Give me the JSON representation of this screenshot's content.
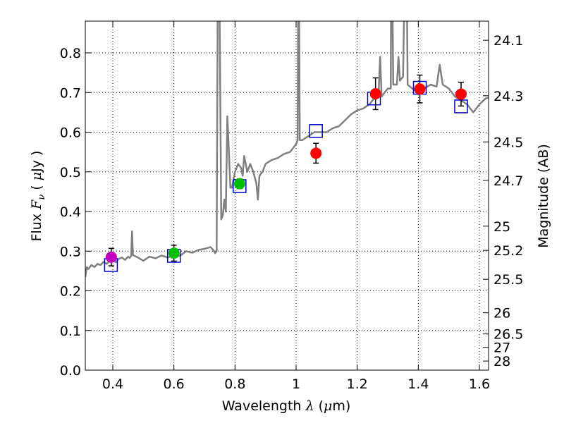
{
  "chart_data": {
    "type": "scatter",
    "xlabel_parts": [
      "Wavelength  ",
      "λ",
      " (",
      "μ",
      "m)"
    ],
    "ylabel_parts": [
      "Flux  ",
      "F",
      "ν",
      "  ( ",
      "μ",
      "Jy )"
    ],
    "y2label": "Magnitude (AB)",
    "xlim": [
      0.31,
      1.63
    ],
    "ylim": [
      0.0,
      0.88
    ],
    "grid": true,
    "x_ticks": [
      0.4,
      0.6,
      0.8,
      1.0,
      1.2,
      1.4,
      1.6
    ],
    "x_tick_labels": [
      "0.4",
      "0.6",
      "0.8",
      "1",
      "1.2",
      "1.4",
      "1.6"
    ],
    "y_ticks": [
      0.0,
      0.1,
      0.2,
      0.3,
      0.4,
      0.5,
      0.6,
      0.7,
      0.8
    ],
    "y_tick_labels": [
      "0.0",
      "0.1",
      "0.2",
      "0.3",
      "0.4",
      "0.5",
      "0.6",
      "0.7",
      "0.8"
    ],
    "y2_ticks": [
      24.1,
      24.3,
      24.5,
      24.7,
      25,
      25.2,
      25.5,
      26,
      26.5,
      27,
      28
    ],
    "y2_tick_labels": [
      "24.1",
      "24.3",
      "24.5",
      "24.7",
      "25",
      "25.2",
      "25.5",
      "26",
      "26.5",
      "27",
      "28"
    ],
    "colors": {
      "model": "#808080",
      "model_boxes": "#0000cc",
      "detection": "#ff0000",
      "purple": "#bf00bf",
      "green": "#00bf00",
      "errorbar": "#000000",
      "grid": "#000000"
    },
    "model_spectrum": [
      [
        0.31,
        0.235
      ],
      [
        0.315,
        0.26
      ],
      [
        0.32,
        0.255
      ],
      [
        0.33,
        0.265
      ],
      [
        0.34,
        0.26
      ],
      [
        0.35,
        0.268
      ],
      [
        0.36,
        0.265
      ],
      [
        0.37,
        0.273
      ],
      [
        0.38,
        0.268
      ],
      [
        0.39,
        0.276
      ],
      [
        0.4,
        0.278
      ],
      [
        0.41,
        0.272
      ],
      [
        0.42,
        0.281
      ],
      [
        0.43,
        0.284
      ],
      [
        0.44,
        0.278
      ],
      [
        0.45,
        0.286
      ],
      [
        0.455,
        0.283
      ],
      [
        0.46,
        0.288
      ],
      [
        0.463,
        0.35
      ],
      [
        0.466,
        0.29
      ],
      [
        0.48,
        0.285
      ],
      [
        0.5,
        0.276
      ],
      [
        0.52,
        0.286
      ],
      [
        0.54,
        0.282
      ],
      [
        0.56,
        0.289
      ],
      [
        0.58,
        0.284
      ],
      [
        0.6,
        0.29
      ],
      [
        0.62,
        0.288
      ],
      [
        0.64,
        0.3
      ],
      [
        0.66,
        0.296
      ],
      [
        0.68,
        0.303
      ],
      [
        0.7,
        0.306
      ],
      [
        0.72,
        0.31
      ],
      [
        0.73,
        0.302
      ],
      [
        0.735,
        0.295
      ],
      [
        0.74,
        0.3
      ],
      [
        0.745,
        1.2
      ],
      [
        0.75,
        0.86
      ],
      [
        0.755,
        0.38
      ],
      [
        0.76,
        0.39
      ],
      [
        0.765,
        0.43
      ],
      [
        0.77,
        0.4
      ],
      [
        0.775,
        0.64
      ],
      [
        0.78,
        0.55
      ],
      [
        0.785,
        0.46
      ],
      [
        0.79,
        0.46
      ],
      [
        0.8,
        0.5
      ],
      [
        0.81,
        0.52
      ],
      [
        0.82,
        0.51
      ],
      [
        0.825,
        0.49
      ],
      [
        0.83,
        0.54
      ],
      [
        0.84,
        0.5
      ],
      [
        0.85,
        0.52
      ],
      [
        0.86,
        0.5
      ],
      [
        0.87,
        0.47
      ],
      [
        0.875,
        0.43
      ],
      [
        0.88,
        0.49
      ],
      [
        0.89,
        0.5
      ],
      [
        0.9,
        0.52
      ],
      [
        0.92,
        0.53
      ],
      [
        0.94,
        0.535
      ],
      [
        0.96,
        0.545
      ],
      [
        0.98,
        0.55
      ],
      [
        0.99,
        0.56
      ],
      [
        1.0,
        0.57
      ],
      [
        1.005,
        0.58
      ],
      [
        1.008,
        1.2
      ],
      [
        1.012,
        0.58
      ],
      [
        1.02,
        0.58
      ],
      [
        1.04,
        0.59
      ],
      [
        1.06,
        0.6
      ],
      [
        1.08,
        0.6
      ],
      [
        1.1,
        0.6
      ],
      [
        1.12,
        0.61
      ],
      [
        1.14,
        0.615
      ],
      [
        1.16,
        0.63
      ],
      [
        1.18,
        0.645
      ],
      [
        1.2,
        0.655
      ],
      [
        1.22,
        0.66
      ],
      [
        1.24,
        0.67
      ],
      [
        1.26,
        0.69
      ],
      [
        1.27,
        0.7
      ],
      [
        1.275,
        0.79
      ],
      [
        1.28,
        0.69
      ],
      [
        1.3,
        0.71
      ],
      [
        1.31,
        0.71
      ],
      [
        1.312,
        1.2
      ],
      [
        1.318,
        0.72
      ],
      [
        1.33,
        0.72
      ],
      [
        1.335,
        0.79
      ],
      [
        1.34,
        0.73
      ],
      [
        1.35,
        0.74
      ],
      [
        1.36,
        1.2
      ],
      [
        1.365,
        0.72
      ],
      [
        1.38,
        0.71
      ],
      [
        1.4,
        0.7
      ],
      [
        1.42,
        0.71
      ],
      [
        1.44,
        0.72
      ],
      [
        1.46,
        0.715
      ],
      [
        1.47,
        0.77
      ],
      [
        1.48,
        0.72
      ],
      [
        1.5,
        0.71
      ],
      [
        1.52,
        0.69
      ],
      [
        1.54,
        0.68
      ],
      [
        1.56,
        0.67
      ],
      [
        1.58,
        0.65
      ],
      [
        1.6,
        0.67
      ],
      [
        1.62,
        0.685
      ],
      [
        1.63,
        0.687
      ]
    ],
    "model_boxes": [
      {
        "x": 0.394,
        "y": 0.265
      },
      {
        "x": 0.6,
        "y": 0.288
      },
      {
        "x": 0.815,
        "y": 0.464
      },
      {
        "x": 1.065,
        "y": 0.603
      },
      {
        "x": 1.255,
        "y": 0.685
      },
      {
        "x": 1.405,
        "y": 0.712
      },
      {
        "x": 1.54,
        "y": 0.665
      }
    ],
    "photometry": [
      {
        "x": 0.395,
        "y": 0.285,
        "err": 0.022,
        "color": "purple"
      },
      {
        "x": 0.6,
        "y": 0.295,
        "err": 0.02,
        "color": "green"
      },
      {
        "x": 0.815,
        "y": 0.47,
        "err": 0.012,
        "color": "green"
      },
      {
        "x": 1.065,
        "y": 0.547,
        "err": 0.025,
        "color": "detection"
      },
      {
        "x": 1.26,
        "y": 0.697,
        "err": 0.04,
        "color": "detection"
      },
      {
        "x": 1.405,
        "y": 0.709,
        "err": 0.035,
        "color": "detection"
      },
      {
        "x": 1.54,
        "y": 0.696,
        "err": 0.03,
        "color": "detection"
      }
    ]
  }
}
